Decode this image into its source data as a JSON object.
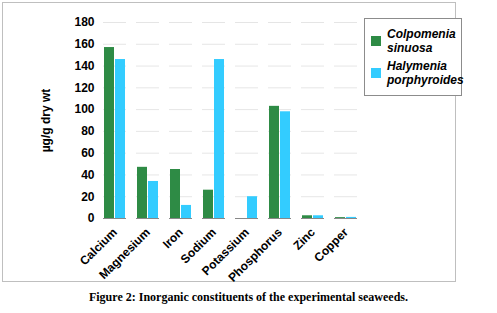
{
  "chart_data": {
    "type": "bar",
    "title": "Figure 2: Inorganic constituents of the experimental seaweeds.",
    "y_label": "µg/g dry wt",
    "categories": [
      "Calcium",
      "Magnesium",
      "Iron",
      "Sodium",
      "Potassium",
      "Phosphorus",
      "Zinc",
      "Copper"
    ],
    "series": [
      {
        "name": "Colpomenia sinuosa",
        "color": "#2e8b45",
        "values": [
          157,
          47,
          45,
          26,
          0,
          103,
          2.5,
          0.8
        ]
      },
      {
        "name": "Halymenia porphyroides",
        "color": "#33ccff",
        "values": [
          146,
          34,
          12,
          146,
          20,
          98,
          2.5,
          1
        ]
      }
    ],
    "ylim": [
      0,
      180
    ],
    "yticks": [
      0,
      20,
      40,
      60,
      80,
      100,
      120,
      140,
      160,
      180
    ],
    "grid": true,
    "legend": "right"
  }
}
